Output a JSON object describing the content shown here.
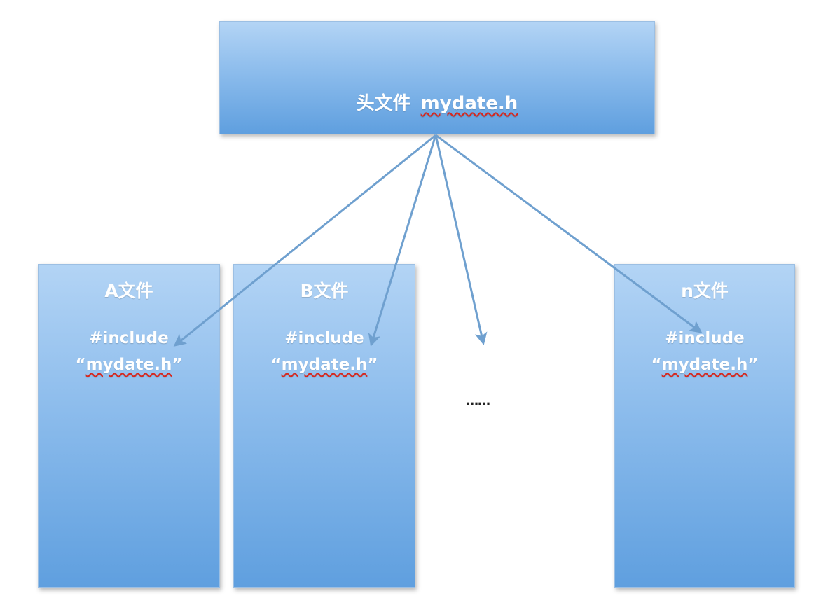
{
  "header": {
    "prefix": "头文件",
    "filename": "mydate.h"
  },
  "files": [
    {
      "title": "A文件",
      "directive": "#include",
      "open_quote": "“",
      "target": "mydate.h",
      "close_quote": "”"
    },
    {
      "title": "B文件",
      "directive": "#include",
      "open_quote": "“",
      "target": "mydate.h",
      "close_quote": "”"
    },
    {
      "title": "n文件",
      "directive": "#include",
      "open_quote": "“",
      "target": "mydate.h",
      "close_quote": "”"
    }
  ],
  "ellipsis": "……",
  "colors": {
    "box_top": "#b3d4f5",
    "box_bottom": "#5f9fdf",
    "arrow": "#6fa0cf",
    "spellcheck": "#d9261c"
  }
}
